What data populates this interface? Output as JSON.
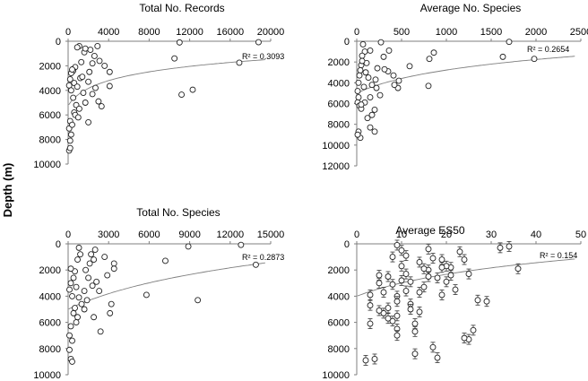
{
  "figure": {
    "shared_ylabel": "Depth (m)"
  },
  "chart_data": [
    {
      "type": "scatter",
      "title": "Total No. Records",
      "xlabel": "Total No. Records",
      "ylabel": "Depth (m)",
      "xlim": [
        0,
        20000
      ],
      "ylim": [
        10000,
        0
      ],
      "xticks": [
        "0",
        "4000",
        "8000",
        "12000",
        "16000",
        "20000"
      ],
      "yticks": [
        "0",
        "2000",
        "4000",
        "6000",
        "8000",
        "10000"
      ],
      "r2": "R² = 0.3093",
      "error_bars": false,
      "trend": {
        "a": 5250,
        "b": 0.00113
      },
      "points": [
        [
          18800,
          80
        ],
        [
          11000,
          100
        ],
        [
          16900,
          1750
        ],
        [
          12300,
          3950
        ],
        [
          11200,
          4350
        ],
        [
          10500,
          1400
        ],
        [
          4100,
          2500
        ],
        [
          4100,
          3650
        ],
        [
          3000,
          4900
        ],
        [
          3300,
          5300
        ],
        [
          3600,
          2000
        ],
        [
          2400,
          1800
        ],
        [
          2600,
          1200
        ],
        [
          3100,
          1600
        ],
        [
          2900,
          400
        ],
        [
          2200,
          700
        ],
        [
          2100,
          2500
        ],
        [
          2400,
          4300
        ],
        [
          2000,
          6600
        ],
        [
          1600,
          900
        ],
        [
          1300,
          1700
        ],
        [
          1200,
          3000
        ],
        [
          1100,
          400
        ],
        [
          900,
          500
        ],
        [
          700,
          2100
        ],
        [
          500,
          2400
        ],
        [
          300,
          2600
        ],
        [
          200,
          3100
        ],
        [
          100,
          3600
        ],
        [
          300,
          4000
        ],
        [
          500,
          4600
        ],
        [
          800,
          5200
        ],
        [
          600,
          5800
        ],
        [
          200,
          6500
        ],
        [
          100,
          7100
        ],
        [
          300,
          7600
        ],
        [
          200,
          8100
        ],
        [
          100,
          8900
        ],
        [
          200,
          8700
        ],
        [
          400,
          2300
        ],
        [
          600,
          3400
        ],
        [
          900,
          3700
        ],
        [
          1500,
          4200
        ],
        [
          1700,
          5000
        ],
        [
          1100,
          5500
        ],
        [
          1400,
          2900
        ],
        [
          1700,
          600
        ],
        [
          700,
          6000
        ],
        [
          400,
          6800
        ],
        [
          1000,
          6200
        ],
        [
          2000,
          3300
        ],
        [
          2700,
          3800
        ]
      ]
    },
    {
      "type": "scatter",
      "title": "Average No. Species",
      "xlabel": "Average No. Species",
      "ylabel": "Depth (m)",
      "xlim": [
        0,
        2500
      ],
      "ylim": [
        12000,
        0
      ],
      "xticks": [
        "0",
        "500",
        "1000",
        "1500",
        "2000",
        "2500"
      ],
      "yticks": [
        "0",
        "2000",
        "4000",
        "6000",
        "8000",
        "10000",
        "12000"
      ],
      "r2": "R² = 0.2654",
      "error_bars": false,
      "trend": {
        "a": 5000,
        "b": 0.00212
      },
      "points": [
        [
          1700,
          60
        ],
        [
          1980,
          1700
        ],
        [
          1630,
          1500
        ],
        [
          860,
          1100
        ],
        [
          810,
          1700
        ],
        [
          800,
          4300
        ],
        [
          590,
          2400
        ],
        [
          470,
          3800
        ],
        [
          460,
          4500
        ],
        [
          410,
          3300
        ],
        [
          350,
          2900
        ],
        [
          310,
          2700
        ],
        [
          300,
          1500
        ],
        [
          270,
          100
        ],
        [
          220,
          4500
        ],
        [
          170,
          4200
        ],
        [
          210,
          3700
        ],
        [
          200,
          6600
        ],
        [
          170,
          7100
        ],
        [
          150,
          8300
        ],
        [
          120,
          7400
        ],
        [
          110,
          2100
        ],
        [
          90,
          1000
        ],
        [
          70,
          300
        ],
        [
          60,
          1400
        ],
        [
          50,
          2300
        ],
        [
          40,
          2800
        ],
        [
          30,
          3300
        ],
        [
          20,
          4000
        ],
        [
          10,
          4800
        ],
        [
          20,
          5400
        ],
        [
          10,
          5900
        ],
        [
          30,
          6200
        ],
        [
          50,
          6500
        ],
        [
          20,
          8700
        ],
        [
          40,
          9300
        ],
        [
          60,
          1900
        ],
        [
          100,
          3000
        ],
        [
          130,
          3500
        ],
        [
          150,
          5400
        ],
        [
          90,
          5900
        ],
        [
          200,
          8700
        ],
        [
          230,
          2600
        ],
        [
          260,
          5200
        ],
        [
          360,
          900
        ],
        [
          150,
          900
        ],
        [
          420,
          4200
        ],
        [
          80,
          4400
        ],
        [
          50,
          6100
        ],
        [
          10,
          9000
        ]
      ]
    },
    {
      "type": "scatter",
      "title": "Total No. Species",
      "xlabel": "Total No. Species",
      "ylabel": "Depth (m)",
      "xlim": [
        0,
        15000
      ],
      "ylim": [
        10000,
        0
      ],
      "xticks": [
        "0",
        "3000",
        "6000",
        "9000",
        "12000",
        "15000"
      ],
      "yticks": [
        "0",
        "2000",
        "4000",
        "6000",
        "8000",
        "10000"
      ],
      "r2": "R² = 0.2873",
      "error_bars": false,
      "trend": {
        "a": 5000,
        "b": 0.000182
      },
      "points": [
        [
          13900,
          1600
        ],
        [
          12800,
          80
        ],
        [
          9600,
          4300
        ],
        [
          8900,
          200
        ],
        [
          7200,
          1300
        ],
        [
          5800,
          3900
        ],
        [
          3400,
          1500
        ],
        [
          3400,
          1900
        ],
        [
          2900,
          2400
        ],
        [
          3200,
          4600
        ],
        [
          3100,
          5300
        ],
        [
          2400,
          6700
        ],
        [
          2000,
          450
        ],
        [
          1900,
          1200
        ],
        [
          1600,
          1500
        ],
        [
          2100,
          2900
        ],
        [
          1800,
          3200
        ],
        [
          1400,
          4300
        ],
        [
          1200,
          5000
        ],
        [
          900,
          800
        ],
        [
          700,
          1200
        ],
        [
          500,
          2100
        ],
        [
          400,
          2600
        ],
        [
          200,
          3000
        ],
        [
          100,
          3500
        ],
        [
          300,
          4000
        ],
        [
          500,
          4900
        ],
        [
          700,
          5600
        ],
        [
          200,
          6300
        ],
        [
          100,
          7000
        ],
        [
          300,
          7400
        ],
        [
          100,
          8100
        ],
        [
          200,
          8800
        ],
        [
          300,
          9000
        ],
        [
          800,
          300
        ],
        [
          1200,
          3600
        ],
        [
          1500,
          2600
        ],
        [
          1700,
          800
        ],
        [
          1000,
          4600
        ],
        [
          600,
          6000
        ],
        [
          2300,
          3600
        ],
        [
          2700,
          1000
        ],
        [
          800,
          4100
        ],
        [
          400,
          5300
        ],
        [
          1300,
          2000
        ],
        [
          200,
          1900
        ],
        [
          1900,
          5600
        ],
        [
          600,
          3300
        ]
      ]
    },
    {
      "type": "scatter",
      "title": "Average ES50",
      "xlabel": "Average ES50",
      "ylabel": "Depth (m)",
      "xlim": [
        0,
        50
      ],
      "ylim": [
        10000,
        0
      ],
      "xticks": [
        "0",
        "10",
        "20",
        "30",
        "40",
        "50"
      ],
      "yticks": [
        "0",
        "2000",
        "4000",
        "6000",
        "8000",
        "10000"
      ],
      "r2": "R² = 0.154",
      "error_bars": true,
      "trend": {
        "a": 4000,
        "b": 0.069
      },
      "points": [
        [
          36,
          1900
        ],
        [
          34,
          200
        ],
        [
          32,
          300
        ],
        [
          29,
          4400
        ],
        [
          27,
          4300
        ],
        [
          26,
          6600
        ],
        [
          25,
          7300
        ],
        [
          24,
          7200
        ],
        [
          25,
          2300
        ],
        [
          24,
          1200
        ],
        [
          23,
          600
        ],
        [
          22,
          3500
        ],
        [
          21,
          1800
        ],
        [
          21,
          2400
        ],
        [
          20,
          1700
        ],
        [
          20,
          2900
        ],
        [
          19,
          3900
        ],
        [
          19,
          1200
        ],
        [
          18,
          2600
        ],
        [
          18,
          8700
        ],
        [
          17,
          7900
        ],
        [
          17,
          1100
        ],
        [
          16,
          2000
        ],
        [
          16,
          400
        ],
        [
          15,
          3300
        ],
        [
          14,
          1400
        ],
        [
          14,
          3700
        ],
        [
          13,
          6700
        ],
        [
          13,
          8400
        ],
        [
          13,
          6100
        ],
        [
          12,
          4600
        ],
        [
          12,
          2900
        ],
        [
          11,
          900
        ],
        [
          11,
          3600
        ],
        [
          10,
          500
        ],
        [
          10,
          1700
        ],
        [
          10,
          2800
        ],
        [
          9,
          4000
        ],
        [
          9,
          4400
        ],
        [
          9,
          5500
        ],
        [
          9,
          6500
        ],
        [
          9,
          7000
        ],
        [
          9,
          100
        ],
        [
          8,
          1000
        ],
        [
          8,
          3100
        ],
        [
          8,
          5900
        ],
        [
          7,
          4900
        ],
        [
          7,
          5700
        ],
        [
          7,
          2500
        ],
        [
          6,
          3700
        ],
        [
          6,
          5300
        ],
        [
          5,
          2400
        ],
        [
          5,
          3000
        ],
        [
          5,
          5100
        ],
        [
          4,
          8800
        ],
        [
          3,
          6100
        ],
        [
          3,
          3900
        ],
        [
          3,
          4700
        ],
        [
          2,
          8900
        ],
        [
          11,
          2300
        ],
        [
          15,
          1900
        ],
        [
          14,
          5200
        ],
        [
          12,
          5000
        ],
        [
          16,
          2500
        ],
        [
          19,
          1800
        ]
      ]
    }
  ]
}
